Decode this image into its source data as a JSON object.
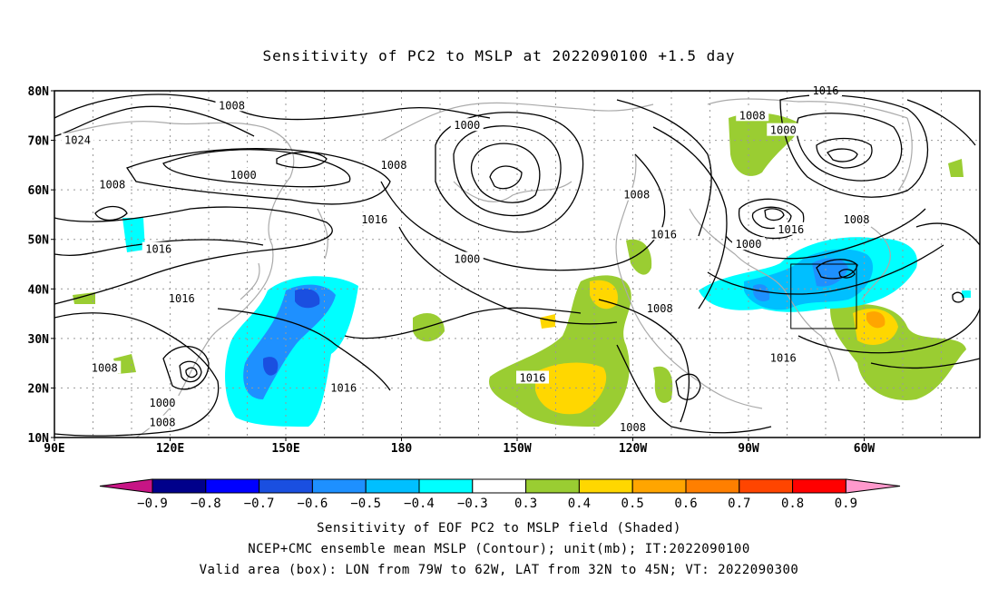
{
  "title": "Sensitivity of PC2 to MSLP at 2022090100 +1.5 day",
  "lat_labels": [
    "80N",
    "70N",
    "60N",
    "50N",
    "40N",
    "30N",
    "20N",
    "10N"
  ],
  "lon_labels": [
    "90E",
    "120E",
    "150E",
    "180",
    "150W",
    "120W",
    "90W",
    "60W"
  ],
  "colorbar": {
    "labels": [
      "−0.9",
      "−0.8",
      "−0.7",
      "−0.6",
      "−0.5",
      "−0.4",
      "−0.3",
      "0.3",
      "0.4",
      "0.5",
      "0.6",
      "0.7",
      "0.8",
      "0.9"
    ],
    "colors": [
      "#c71585",
      "#00008b",
      "#0000ff",
      "#1a4fe0",
      "#1e90ff",
      "#00bfff",
      "#00ffff",
      "#ffffff",
      "#9acd32",
      "#ffd700",
      "#ffa500",
      "#ff7f00",
      "#ff4500",
      "#ff0000",
      "#ff99cc"
    ]
  },
  "contour_labels": [
    {
      "text": "1024",
      "lon": 96,
      "lat": 70
    },
    {
      "text": "1008",
      "lon": 136,
      "lat": 77
    },
    {
      "text": "1000",
      "lon": 139,
      "lat": 63
    },
    {
      "text": "1008",
      "lon": 105,
      "lat": 61
    },
    {
      "text": "1008",
      "lon": 178,
      "lat": 65
    },
    {
      "text": "1000",
      "lon": -163,
      "lat": 73
    },
    {
      "text": "1016",
      "lon": 173,
      "lat": 54
    },
    {
      "text": "1016",
      "lon": 117,
      "lat": 48
    },
    {
      "text": "1016",
      "lon": 123,
      "lat": 38
    },
    {
      "text": "1008",
      "lon": -119,
      "lat": 59
    },
    {
      "text": "1016",
      "lon": -112,
      "lat": 51
    },
    {
      "text": "1000",
      "lon": -163,
      "lat": 46
    },
    {
      "text": "1008",
      "lon": -113,
      "lat": 36
    },
    {
      "text": "1008",
      "lon": 103,
      "lat": 24
    },
    {
      "text": "1000",
      "lon": 118,
      "lat": 17
    },
    {
      "text": "1008",
      "lon": 118,
      "lat": 13
    },
    {
      "text": "1016",
      "lon": 165,
      "lat": 20
    },
    {
      "text": "1016",
      "lon": -146,
      "lat": 22
    },
    {
      "text": "1008",
      "lon": -120,
      "lat": 12
    },
    {
      "text": "1016",
      "lon": -70,
      "lat": 80
    },
    {
      "text": "1008",
      "lon": -89,
      "lat": 75
    },
    {
      "text": "1000",
      "lon": -81,
      "lat": 72
    },
    {
      "text": "1016",
      "lon": -79,
      "lat": 52
    },
    {
      "text": "1008",
      "lon": -62,
      "lat": 54
    },
    {
      "text": "1000",
      "lon": -90,
      "lat": 49
    },
    {
      "text": "1016",
      "lon": -81,
      "lat": 26
    }
  ],
  "valid_box": {
    "lon_min": -79,
    "lon_max": -62,
    "lat_min": 32,
    "lat_max": 45
  },
  "footer": {
    "line1": "Sensitivity of EOF PC2 to MSLP field (Shaded)",
    "line2": "NCEP+CMC ensemble mean MSLP (Contour); unit(mb); IT:2022090100",
    "line3": "Valid area (box): LON from 79W to 62W, LAT from 32N to 45N; VT: 2022090300"
  }
}
